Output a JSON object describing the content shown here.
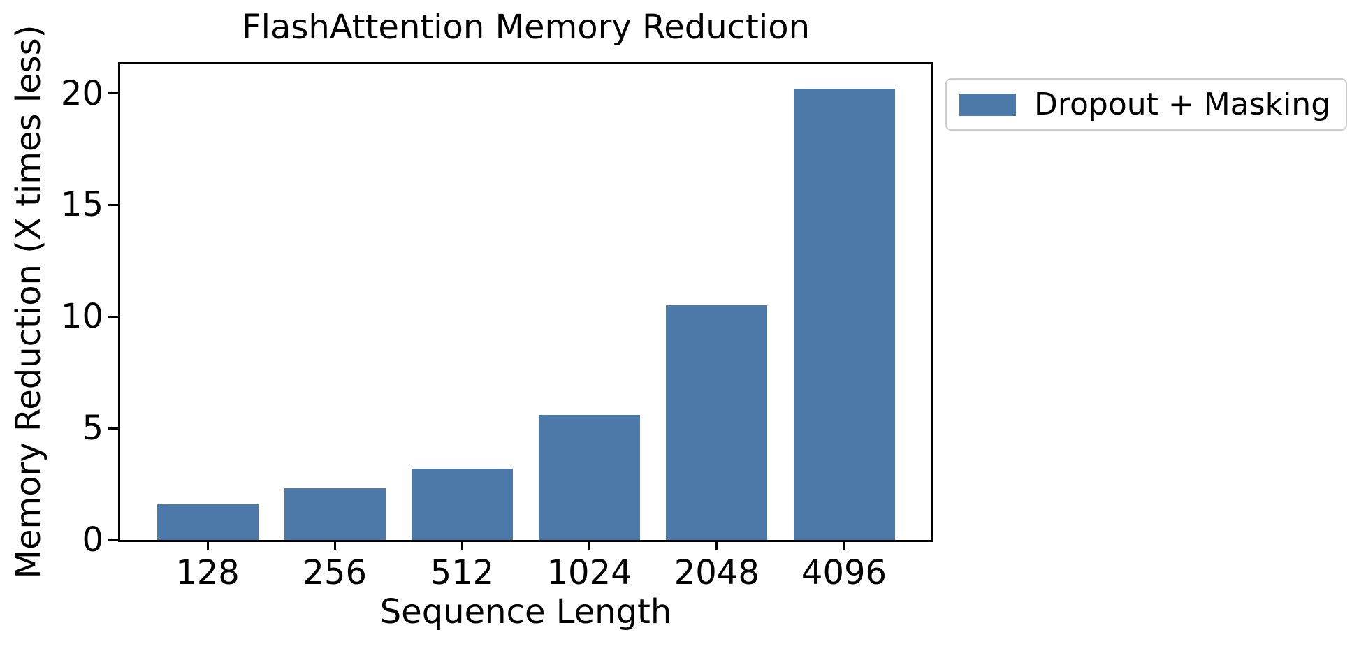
{
  "chart_data": {
    "type": "bar",
    "title": "FlashAttention Memory Reduction",
    "xlabel": "Sequence Length",
    "ylabel": "Memory Reduction (X times less)",
    "categories": [
      "128",
      "256",
      "512",
      "1024",
      "2048",
      "4096"
    ],
    "series": [
      {
        "name": "Dropout + Masking",
        "values": [
          1.6,
          2.3,
          3.2,
          5.6,
          10.5,
          20.2
        ]
      }
    ],
    "yticks": [
      0,
      5,
      10,
      15,
      20
    ],
    "ylim": [
      0,
      21.3
    ],
    "grid": false,
    "legend": {
      "entries": [
        "Dropout + Masking"
      ],
      "position": "outside-upper-right"
    },
    "colors": {
      "bar": "#4C79A8",
      "axis": "#000000",
      "legend_border": "#cccccc",
      "background": "#ffffff"
    }
  }
}
